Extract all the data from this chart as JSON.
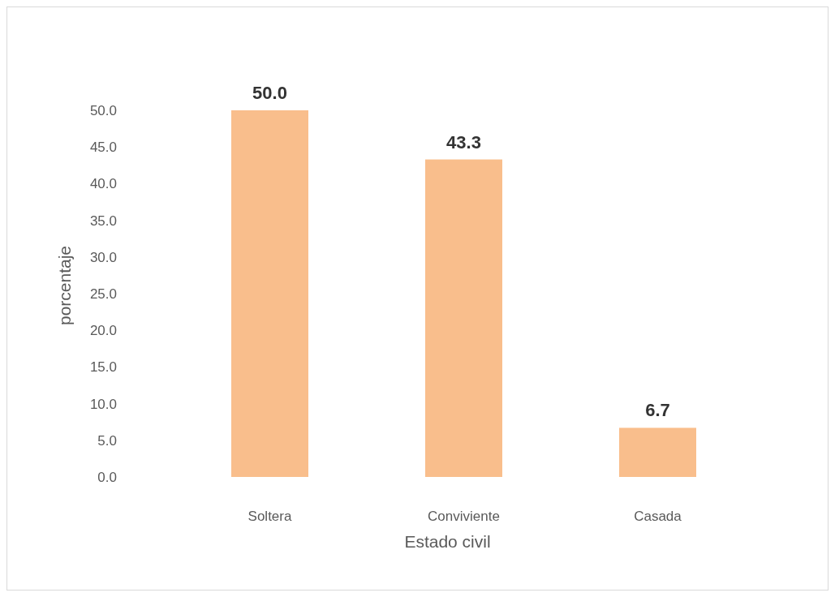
{
  "chart_data": {
    "type": "bar",
    "xlabel": "Estado civil",
    "ylabel": "porcentaje",
    "categories": [
      "Soltera",
      "Conviviente",
      "Casada"
    ],
    "values": [
      50.0,
      43.3,
      6.7
    ],
    "value_labels": [
      "50.0",
      "43.3",
      "6.7"
    ],
    "color": "#f9be8c",
    "ylim": [
      0,
      50
    ],
    "yticks": [
      {
        "value": 0,
        "label": "0.0"
      },
      {
        "value": 5,
        "label": "5.0"
      },
      {
        "value": 10,
        "label": "10.0"
      },
      {
        "value": 15,
        "label": "15.0"
      },
      {
        "value": 20,
        "label": "20.0"
      },
      {
        "value": 25,
        "label": "25.0"
      },
      {
        "value": 30,
        "label": "30.0"
      },
      {
        "value": 35,
        "label": "35.0"
      },
      {
        "value": 40,
        "label": "40.0"
      },
      {
        "value": 45,
        "label": "45.0"
      },
      {
        "value": 50,
        "label": "50.0"
      }
    ],
    "grid": false
  }
}
